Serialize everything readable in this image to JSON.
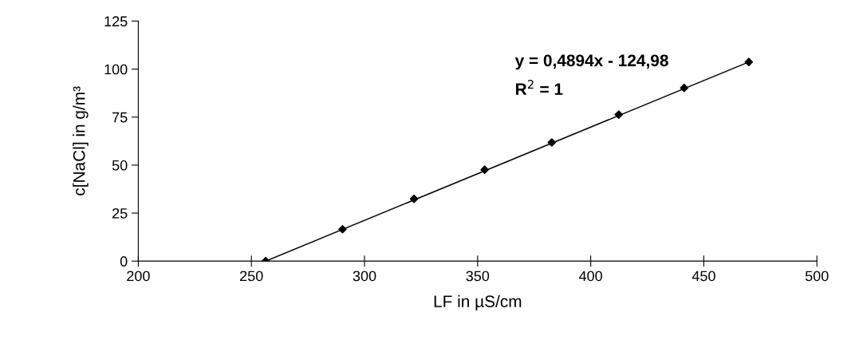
{
  "chart_data": {
    "type": "scatter",
    "xlabel": "LF in µS/cm",
    "ylabel": "c[NaCl] in g/m³",
    "xlim": [
      200,
      500
    ],
    "xticks": [
      200,
      250,
      300,
      350,
      400,
      450,
      500
    ],
    "ylim": [
      0,
      125
    ],
    "yticks": [
      0,
      25,
      50,
      75,
      100,
      125
    ],
    "grid": false,
    "marker": "diamond",
    "series": [
      {
        "color": "#000000",
        "x": [
          256.3,
          290.3,
          321.9,
          353.1,
          382.8,
          412.4,
          441.3,
          469.9
        ],
        "values": [
          0,
          16.6,
          32.4,
          47.6,
          61.8,
          76.3,
          90.2,
          103.7
        ]
      },
      {
        "type": "line",
        "color": "#000000",
        "line_style": "solid",
        "marker": "none",
        "x": [
          256.3,
          469.9
        ],
        "values": [
          0,
          103.7
        ]
      }
    ],
    "annotations": [
      "y = 0,4894x - 124,98",
      "R$^{2}$ = 1"
    ]
  }
}
